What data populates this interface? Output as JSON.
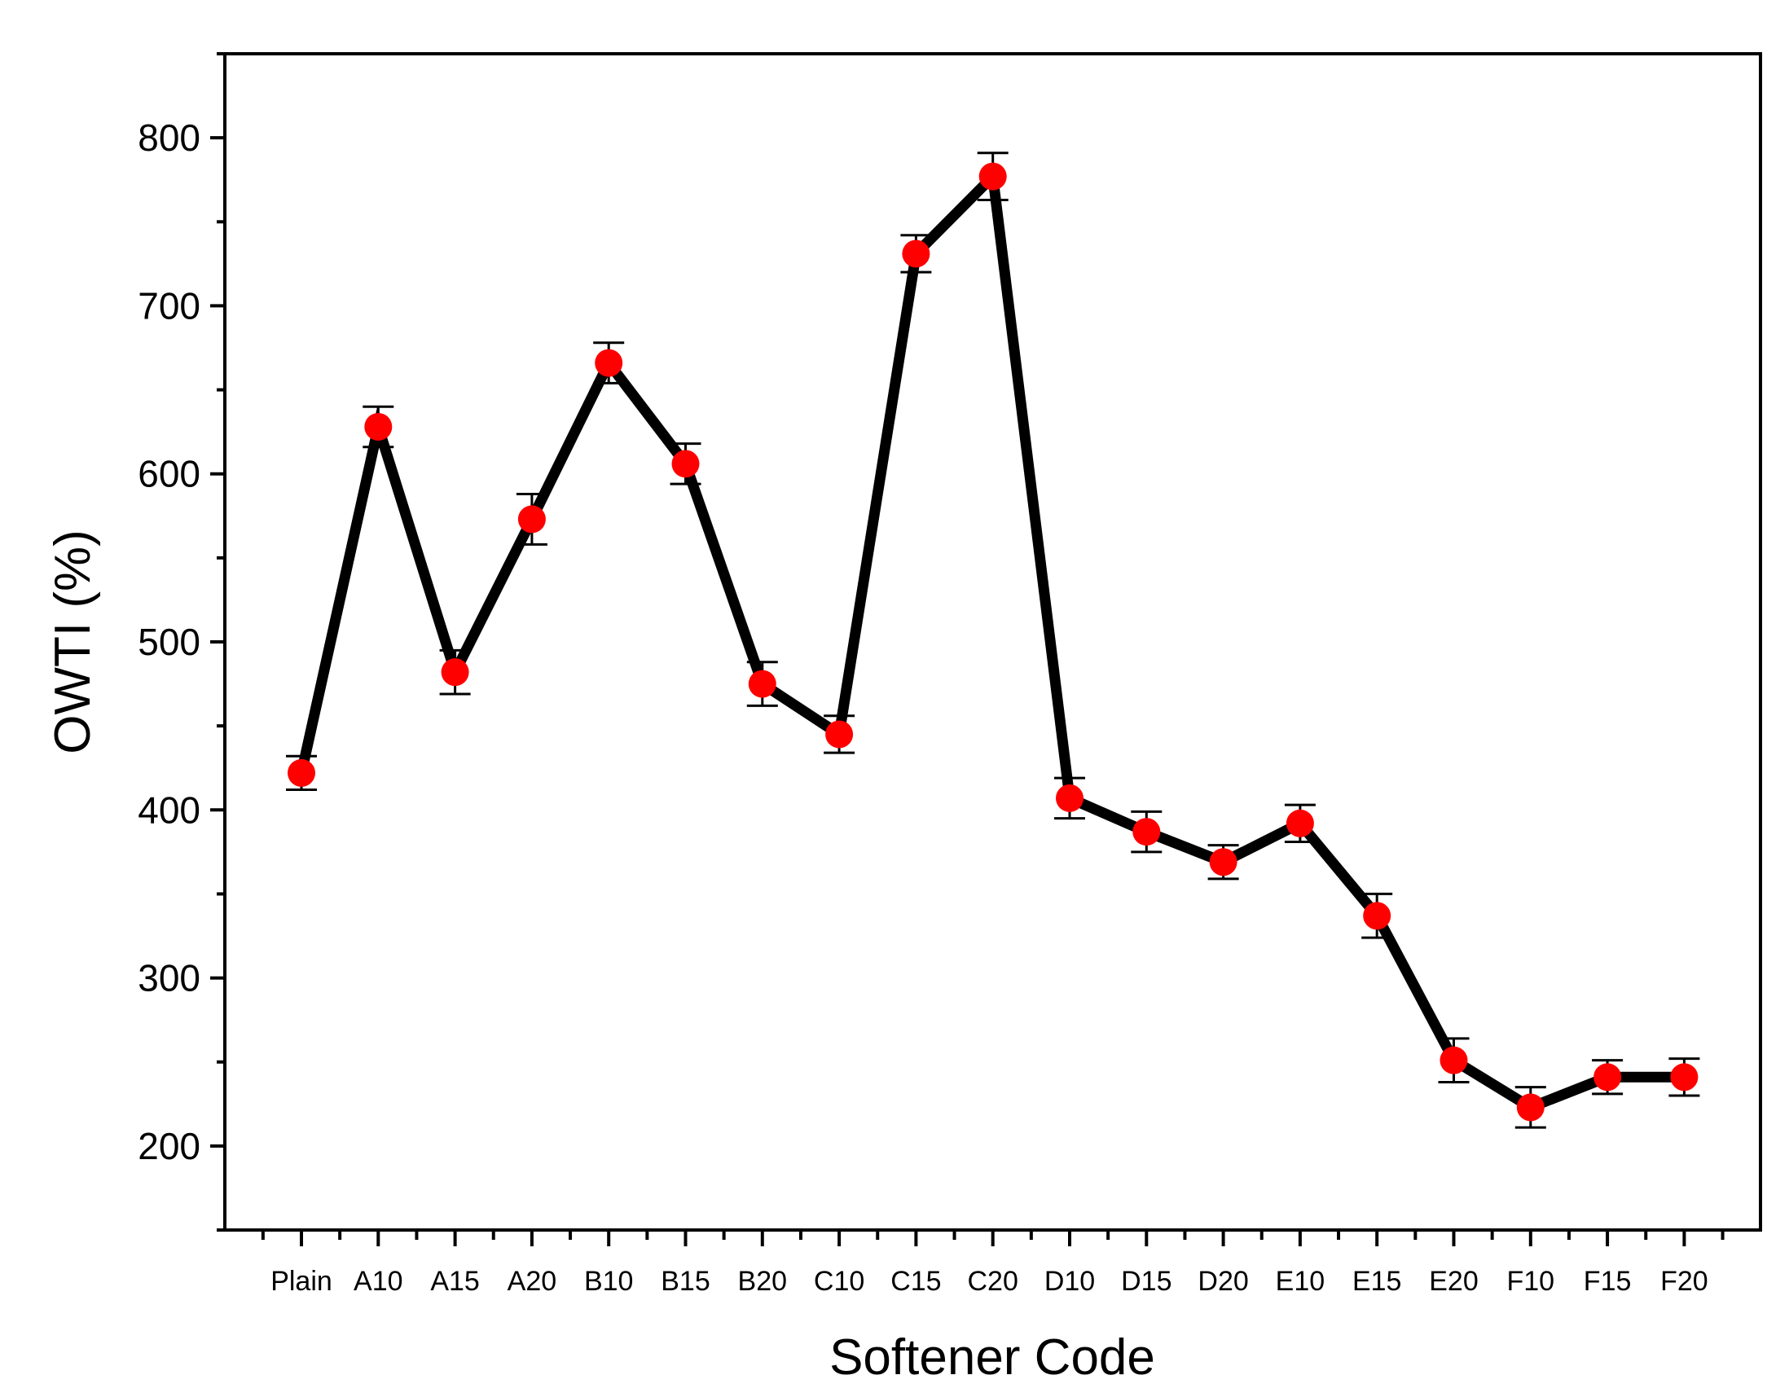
{
  "chart_data": {
    "type": "line",
    "title": "",
    "xlabel": "Softener Code",
    "ylabel": "OWTI (%)",
    "categories": [
      "Plain",
      "A10",
      "A15",
      "A20",
      "B10",
      "B15",
      "B20",
      "C10",
      "C15",
      "C20",
      "D10",
      "D15",
      "D20",
      "E10",
      "E15",
      "E20",
      "F10",
      "F15",
      "F20"
    ],
    "series": [
      {
        "values": [
          422,
          628,
          482,
          573,
          666,
          606,
          475,
          445,
          731,
          777,
          407,
          387,
          369,
          392,
          337,
          251,
          223,
          241,
          241
        ],
        "errors": [
          10,
          12,
          13,
          15,
          12,
          12,
          13,
          11,
          11,
          14,
          12,
          12,
          10,
          11,
          13,
          13,
          12,
          10,
          11
        ]
      }
    ],
    "ylim": [
      150,
      850
    ],
    "yticks": [
      200,
      300,
      400,
      500,
      600,
      700,
      800
    ],
    "grid": false,
    "legend": "none",
    "colors": {
      "line": "#000000",
      "marker": "#ff0000",
      "axis": "#000000"
    }
  }
}
